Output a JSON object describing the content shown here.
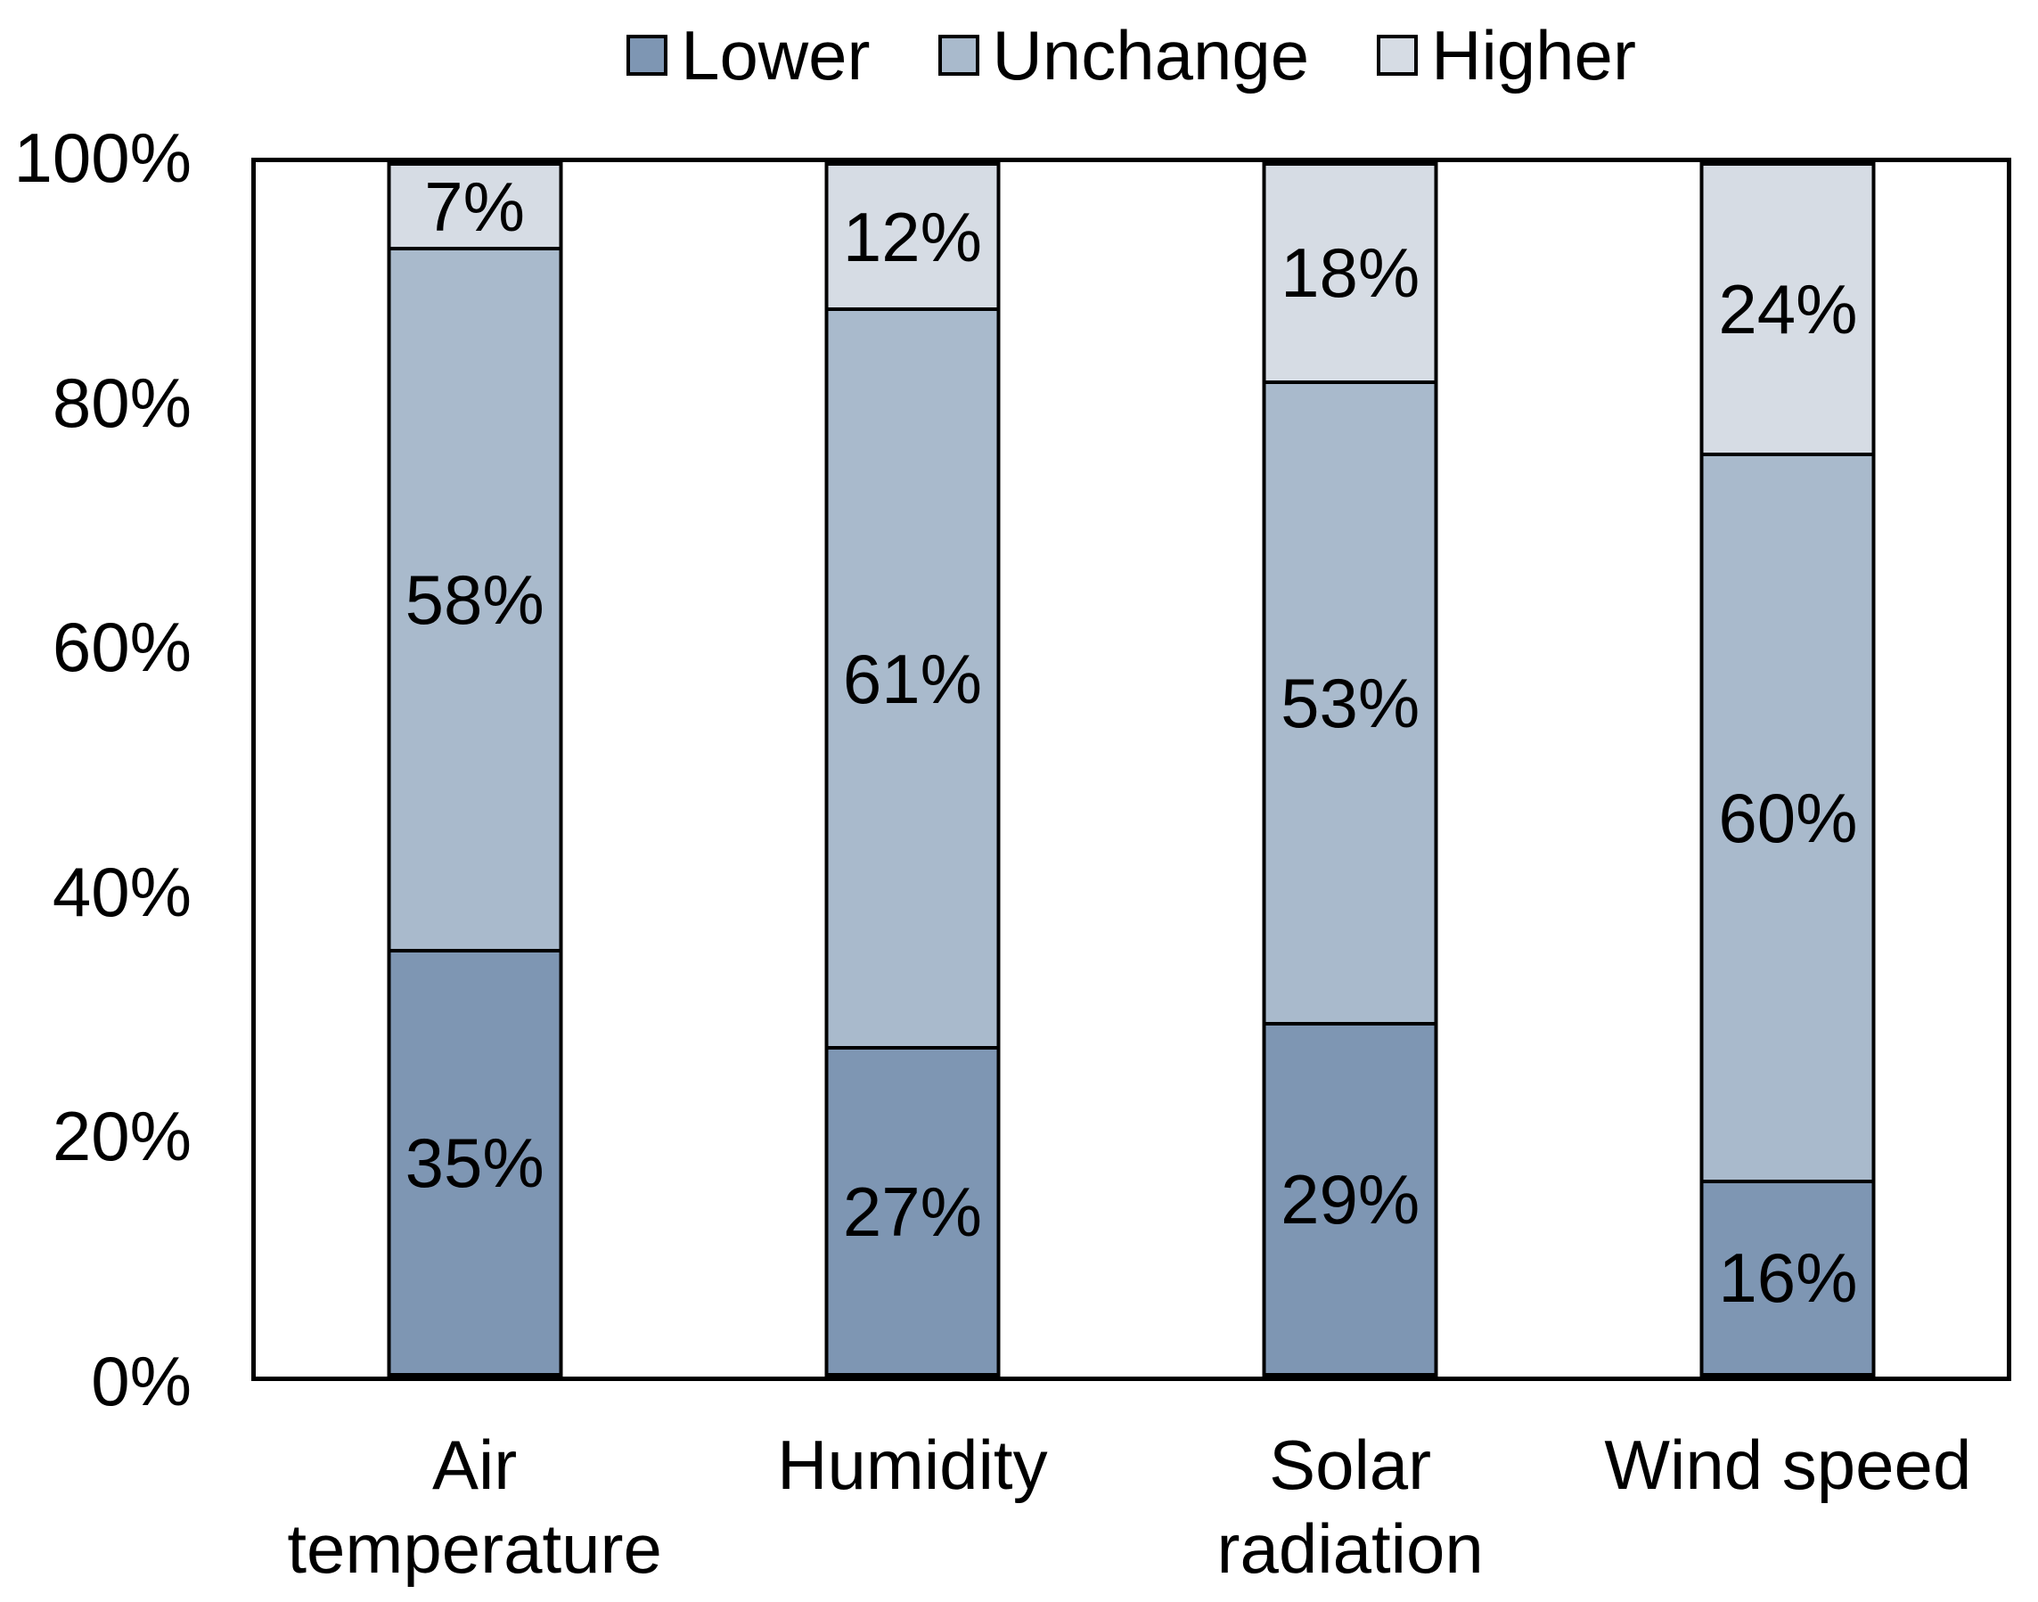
{
  "chart_data": {
    "type": "bar",
    "stacked": true,
    "percent_stacked": true,
    "title": "",
    "xlabel": "",
    "ylabel": "",
    "ylim": [
      0,
      100
    ],
    "grid": false,
    "legend_position": "top",
    "categories": [
      {
        "label": "Air temperature",
        "lines": [
          "Air",
          "temperature"
        ]
      },
      {
        "label": "Humidity",
        "lines": [
          "Humidity"
        ]
      },
      {
        "label": "Solar radiation",
        "lines": [
          "Solar",
          "radiation"
        ]
      },
      {
        "label": "Wind speed",
        "lines": [
          "Wind speed"
        ]
      }
    ],
    "series": [
      {
        "name": "Lower",
        "color": "#7E96B3",
        "values": [
          35,
          27,
          29,
          16
        ]
      },
      {
        "name": "Unchange",
        "color": "#A9BACC",
        "values": [
          58,
          61,
          53,
          60
        ]
      },
      {
        "name": "Higher",
        "color": "#D6DCE4",
        "values": [
          7,
          12,
          18,
          24
        ]
      }
    ],
    "data_label_suffix": "%",
    "y_ticks": [
      0,
      20,
      40,
      60,
      80,
      100
    ],
    "y_tick_suffix": "%",
    "y_tick_labels": [
      "0%",
      "20%",
      "40%",
      "60%",
      "80%",
      "100%"
    ]
  },
  "colors": {
    "background": "#FFFFFF",
    "plot_border": "#000000",
    "segment_border": "#000000",
    "text": "#000000"
  }
}
